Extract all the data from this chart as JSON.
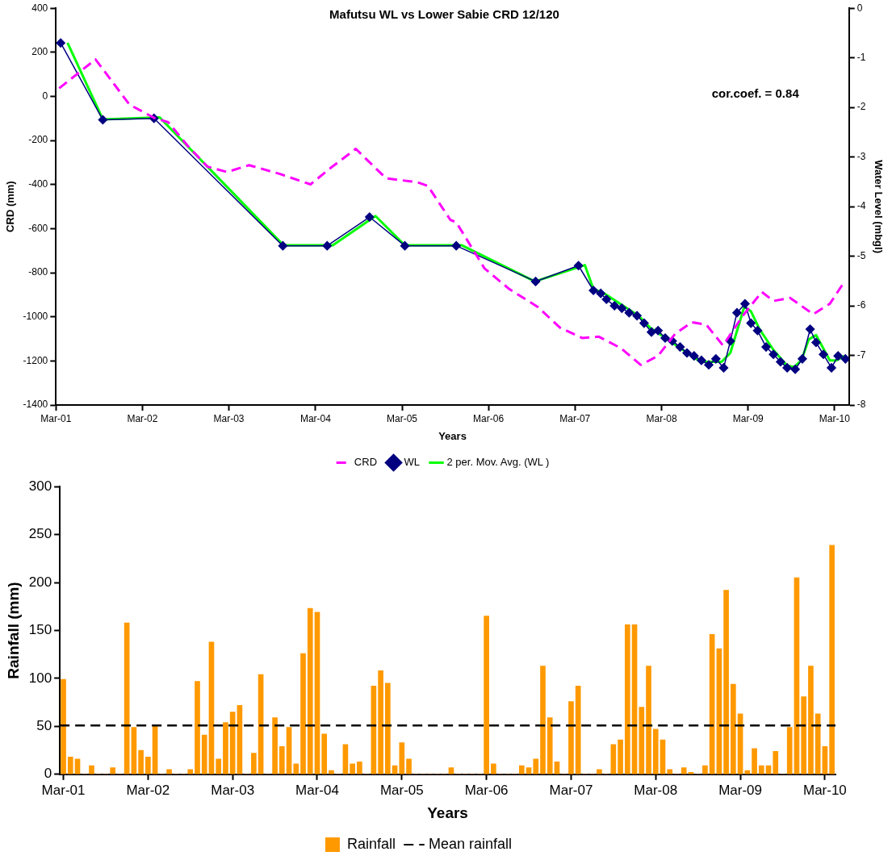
{
  "chart_data": [
    {
      "type": "line",
      "title": "Mafutsu WL vs Lower Sabie CRD 12/120",
      "xlabel": "Years",
      "ylabel": "CRD (mm)",
      "y2label": "Water Level (mbgl)",
      "xlim": [
        "2001-03",
        "2010-05"
      ],
      "xticks": [
        {
          "value": "2001-03",
          "label": "Mar-01"
        },
        {
          "value": "2002-03",
          "label": "Mar-02"
        },
        {
          "value": "2003-03",
          "label": "Mar-03"
        },
        {
          "value": "2004-03",
          "label": "Mar-04"
        },
        {
          "value": "2005-03",
          "label": "Mar-05"
        },
        {
          "value": "2006-03",
          "label": "Mar-06"
        },
        {
          "value": "2007-03",
          "label": "Mar-07"
        },
        {
          "value": "2008-03",
          "label": "Mar-08"
        },
        {
          "value": "2009-03",
          "label": "Mar-09"
        },
        {
          "value": "2010-03",
          "label": "Mar-10"
        }
      ],
      "ylim": [
        -1400,
        400
      ],
      "yticks": [
        -1400,
        -1200,
        -1000,
        -800,
        -600,
        -400,
        -200,
        0,
        200,
        400
      ],
      "y2lim": [
        -8,
        0
      ],
      "y2ticks": [
        -8,
        -7,
        -6,
        -5,
        -4,
        -3,
        -2,
        -1,
        0
      ],
      "legend": "bottom",
      "annotations": [
        "cor.coef. = 0.84"
      ],
      "series": [
        {
          "name": "CRD",
          "color": "#ff00ff",
          "line_style": "dashed",
          "marker": "none",
          "x": [
            "2001-03-15",
            "2001-08-15",
            "2001-10-13",
            "2002-01-05",
            "2002-04-19",
            "2002-06-18",
            "2002-09-09",
            "2002-12-01",
            "2003-02-22",
            "2003-05-25",
            "2003-10-03",
            "2004-02-09",
            "2004-05-03",
            "2004-08-18",
            "2004-10-15",
            "2004-12-24",
            "2005-05-03",
            "2005-06-18",
            "2005-09-21",
            "2005-10-16",
            "2006-02-12",
            "2006-05-28",
            "2006-09-25",
            "2006-12-28",
            "2007-03-31",
            "2007-06-10",
            "2007-09-12",
            "2007-12-04",
            "2008-02-15",
            "2008-04-28",
            "2008-07-07",
            "2008-09-06",
            "2008-11-15",
            "2009-02-07",
            "2009-04-28",
            "2009-06-16",
            "2009-08-25",
            "2009-12-01",
            "2010-02-09",
            "2010-04-12"
          ],
          "values": [
            37,
            168,
            84,
            -37,
            -97,
            -117,
            -225,
            -319,
            -343,
            -312,
            -352,
            -399,
            -325,
            -238,
            -299,
            -372,
            -389,
            -406,
            -560,
            -571,
            -780,
            -874,
            -955,
            -1049,
            -1096,
            -1090,
            -1143,
            -1218,
            -1177,
            -1076,
            -1025,
            -1036,
            -1130,
            -995,
            -887,
            -928,
            -914,
            -988,
            -941,
            -840
          ]
        },
        {
          "name": "WL",
          "color": "#000080",
          "axis": "y2",
          "line_style": "solid",
          "marker": "diamond",
          "x": [
            "2001-03-21",
            "2001-09-15",
            "2002-04-19",
            "2003-10-15",
            "2004-04-19",
            "2004-10-15",
            "2005-03-13",
            "2005-10-16",
            "2006-09-16",
            "2007-03-16",
            "2007-05-18",
            "2007-06-18",
            "2007-07-12",
            "2007-08-15",
            "2007-09-15",
            "2007-10-16",
            "2007-11-18",
            "2007-12-18",
            "2008-01-18",
            "2008-02-15",
            "2008-03-16",
            "2008-04-15",
            "2008-05-18",
            "2008-06-16",
            "2008-07-16",
            "2008-08-16",
            "2008-09-16",
            "2008-10-16",
            "2008-11-18",
            "2008-12-16",
            "2009-01-13",
            "2009-02-16",
            "2009-03-13",
            "2009-04-10",
            "2009-05-16",
            "2009-06-16",
            "2009-07-16",
            "2009-08-13",
            "2009-09-16",
            "2009-10-16",
            "2009-11-18",
            "2009-12-13",
            "2010-01-13",
            "2010-02-16",
            "2010-03-16",
            "2010-04-16"
          ],
          "values": [
            -0.7,
            -2.25,
            -2.22,
            -4.79,
            -4.79,
            -4.21,
            -4.79,
            -4.79,
            -5.51,
            -5.19,
            -5.69,
            -5.75,
            -5.87,
            -6.0,
            -6.05,
            -6.14,
            -6.2,
            -6.35,
            -6.53,
            -6.5,
            -6.65,
            -6.71,
            -6.83,
            -6.95,
            -7.01,
            -7.1,
            -7.19,
            -7.07,
            -7.25,
            -6.71,
            -6.14,
            -5.96,
            -6.35,
            -6.5,
            -6.83,
            -6.98,
            -7.13,
            -7.25,
            -7.28,
            -7.07,
            -6.47,
            -6.74,
            -6.98,
            -7.25,
            -7.01,
            -7.07
          ]
        },
        {
          "name": "2 per. Mov. Avg. (WL )",
          "color": "#00ff00",
          "axis": "y2",
          "line_style": "solid",
          "marker": "none",
          "x": [
            "2001-04-19",
            "2001-09-15",
            "2002-05-13",
            "2003-10-18",
            "2004-05-13",
            "2004-11-09",
            "2005-03-13",
            "2005-11-09",
            "2006-09-13",
            "2007-04-12",
            "2007-05-18",
            "2007-07-03",
            "2007-11-24",
            "2008-01-12",
            "2008-08-12",
            "2008-11-09",
            "2008-12-16",
            "2009-02-13",
            "2009-03-13",
            "2009-04-18",
            "2009-06-16",
            "2009-08-13",
            "2009-09-12",
            "2009-10-12",
            "2009-11-12",
            "2009-12-13",
            "2010-02-09",
            "2010-03-09",
            "2010-04-12"
          ],
          "values": [
            -0.7,
            -2.24,
            -2.2,
            -4.78,
            -4.78,
            -4.19,
            -4.78,
            -4.78,
            -5.51,
            -5.18,
            -5.66,
            -5.75,
            -6.2,
            -6.44,
            -7.13,
            -7.13,
            -6.95,
            -6.02,
            -6.11,
            -6.47,
            -6.89,
            -7.21,
            -7.23,
            -7.1,
            -6.68,
            -6.59,
            -7.1,
            -7.1,
            -7.01
          ]
        }
      ]
    },
    {
      "type": "bar",
      "xlabel": "Years",
      "ylabel": "Rainfall (mm)",
      "categories": [
        "Mar-01",
        null,
        null,
        null,
        null,
        null,
        null,
        null,
        null,
        null,
        null,
        null,
        "Mar-02",
        null,
        null,
        null,
        null,
        null,
        null,
        null,
        null,
        null,
        null,
        null,
        "Mar-03",
        null,
        null,
        null,
        null,
        null,
        null,
        null,
        null,
        null,
        null,
        null,
        "Mar-04",
        null,
        null,
        null,
        null,
        null,
        null,
        null,
        null,
        null,
        null,
        null,
        "Mar-05",
        null,
        null,
        null,
        null,
        null,
        null,
        null,
        null,
        null,
        null,
        null,
        "Mar-06",
        null,
        null,
        null,
        null,
        null,
        null,
        null,
        null,
        null,
        null,
        null,
        "Mar-07",
        null,
        null,
        null,
        null,
        null,
        null,
        null,
        null,
        null,
        null,
        null,
        "Mar-08",
        null,
        null,
        null,
        null,
        null,
        null,
        null,
        null,
        null,
        null,
        null,
        "Mar-09",
        null,
        null,
        null,
        null,
        null,
        null,
        null,
        null,
        null,
        null,
        null,
        "Mar-10",
        null
      ],
      "ylim": [
        0,
        300
      ],
      "yticks": [
        0,
        50,
        100,
        150,
        200,
        250,
        300
      ],
      "legend": "bottom",
      "ref_lines": [
        {
          "axis": "y",
          "value": 51,
          "label": "Mean rainfall",
          "color": "#000000",
          "line_style": "dashed"
        }
      ],
      "series": [
        {
          "name": "Rainfall",
          "color": "#ff9900",
          "values": [
            99,
            18,
            16,
            0,
            9,
            0,
            0,
            7,
            0,
            158,
            49,
            25,
            18,
            50,
            0,
            5,
            0,
            0,
            5,
            97,
            41,
            138,
            16,
            54,
            65,
            72,
            0,
            22,
            104,
            0,
            59,
            29,
            49,
            11,
            126,
            173,
            169,
            42,
            4,
            0,
            31,
            11,
            13,
            0,
            92,
            108,
            95,
            9,
            33,
            16,
            0,
            0,
            0,
            0,
            0,
            7,
            0,
            0,
            0,
            0,
            165,
            11,
            0,
            0,
            0,
            9,
            7,
            16,
            113,
            59,
            13,
            0,
            76,
            92,
            0,
            0,
            5,
            0,
            31,
            36,
            156,
            156,
            70,
            113,
            47,
            36,
            5,
            0,
            7,
            2,
            0,
            9,
            146,
            131,
            192,
            94,
            63,
            4,
            27,
            9,
            9,
            24,
            0,
            49,
            205,
            81,
            113,
            63,
            29,
            239
          ]
        }
      ]
    }
  ]
}
